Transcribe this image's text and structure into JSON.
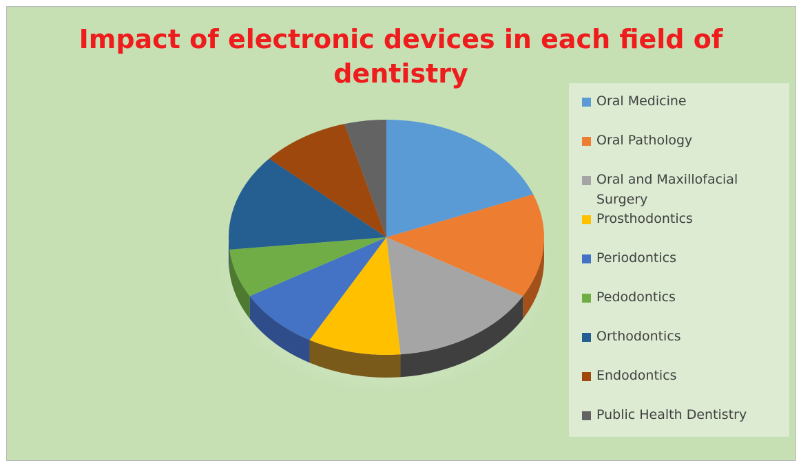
{
  "chart_data": {
    "type": "pie",
    "style": "3d",
    "title": "Impact of electronic devices in each field of dentistry",
    "title_lines": [
      "Impact of electronic devices in each field of",
      "dentistry"
    ],
    "legend_position": "right",
    "categories": [
      "Oral Medicine",
      "Oral Pathology",
      "Oral and Maxillofacial Surgery",
      "Prosthodontics",
      "Periodontics",
      "Pedodontics",
      "Orthodontics",
      "Endodontics",
      "Public Health Dentistry"
    ],
    "legend_labels": [
      [
        "Oral Medicine"
      ],
      [
        "Oral Pathology"
      ],
      [
        "Oral and Maxillofacial",
        "Surgery"
      ],
      [
        "Prosthodontics"
      ],
      [
        "Periodontics"
      ],
      [
        "Pedodontics"
      ],
      [
        "Orthodontics"
      ],
      [
        "Endodontics"
      ],
      [
        "Public Health Dentistry"
      ]
    ],
    "values": [
      20,
      15,
      16,
      10,
      9,
      7,
      14,
      9.5,
      4.5
    ],
    "colors": [
      "#5b9bd5",
      "#ed7d31",
      "#a5a5a5",
      "#ffc000",
      "#4472c4",
      "#70ad47",
      "#255e91",
      "#9e480e",
      "#636363"
    ],
    "side_colors": [
      "#3f6f9a",
      "#a4501a",
      "#3f3f3f",
      "#7a5a1a",
      "#2e4d8a",
      "#4d7a30",
      "#1a4166",
      "#6e3209",
      "#444444"
    ]
  }
}
